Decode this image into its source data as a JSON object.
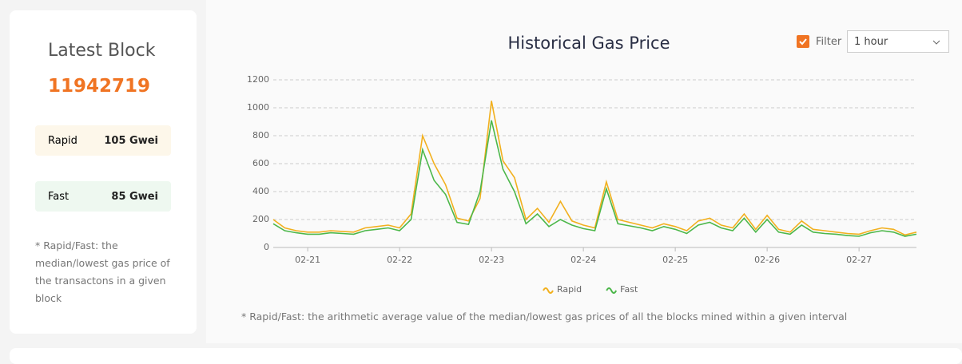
{
  "sidebar": {
    "title": "Latest Block",
    "block": "11942719",
    "rows": [
      {
        "label": "Rapid",
        "value": "105 Gwei"
      },
      {
        "label": "Fast",
        "value": "85 Gwei"
      }
    ],
    "note": "* Rapid/Fast: the median/lowest gas price of the transactons in a given block"
  },
  "filter": {
    "label": "Filter",
    "interval": "1 hour"
  },
  "chart_data": {
    "type": "line",
    "title": "Historical Gas Price",
    "categories": [
      null,
      null,
      null,
      "02-21",
      null,
      null,
      null,
      null,
      null,
      null,
      null,
      "02-22",
      null,
      null,
      null,
      null,
      null,
      null,
      null,
      "02-23",
      null,
      null,
      null,
      null,
      null,
      null,
      null,
      "02-24",
      null,
      null,
      null,
      null,
      null,
      null,
      null,
      "02-25",
      null,
      null,
      null,
      null,
      null,
      null,
      null,
      "02-26",
      null,
      null,
      null,
      null,
      null,
      null,
      null,
      "02-27",
      null,
      null,
      null,
      null,
      null
    ],
    "series": [
      {
        "name": "Rapid",
        "color": "#f2b01e",
        "values": [
          200,
          140,
          120,
          110,
          110,
          120,
          115,
          110,
          140,
          150,
          160,
          140,
          240,
          800,
          600,
          450,
          210,
          190,
          350,
          1050,
          620,
          500,
          200,
          280,
          180,
          330,
          190,
          160,
          140,
          470,
          200,
          180,
          160,
          140,
          170,
          150,
          120,
          190,
          210,
          160,
          140,
          240,
          130,
          230,
          130,
          110,
          190,
          130,
          120,
          110,
          100,
          95,
          120,
          140,
          130,
          90,
          110
        ]
      },
      {
        "name": "Fast",
        "color": "#4cb74a",
        "values": [
          170,
          120,
          105,
          95,
          95,
          105,
          100,
          95,
          120,
          130,
          140,
          120,
          200,
          700,
          480,
          380,
          180,
          165,
          400,
          910,
          560,
          400,
          170,
          240,
          150,
          200,
          160,
          135,
          120,
          420,
          170,
          155,
          140,
          120,
          150,
          130,
          100,
          160,
          180,
          140,
          120,
          210,
          110,
          200,
          110,
          95,
          160,
          110,
          100,
          95,
          85,
          80,
          105,
          120,
          110,
          80,
          95
        ]
      }
    ],
    "ylim": [
      0,
      1200
    ],
    "yticks": [
      0,
      200,
      400,
      600,
      800,
      1000,
      1200
    ],
    "grid": true,
    "legend": "bottom"
  },
  "footnote": "* Rapid/Fast: the arithmetic average value of the median/lowest gas prices of all the blocks mined within a given interval"
}
